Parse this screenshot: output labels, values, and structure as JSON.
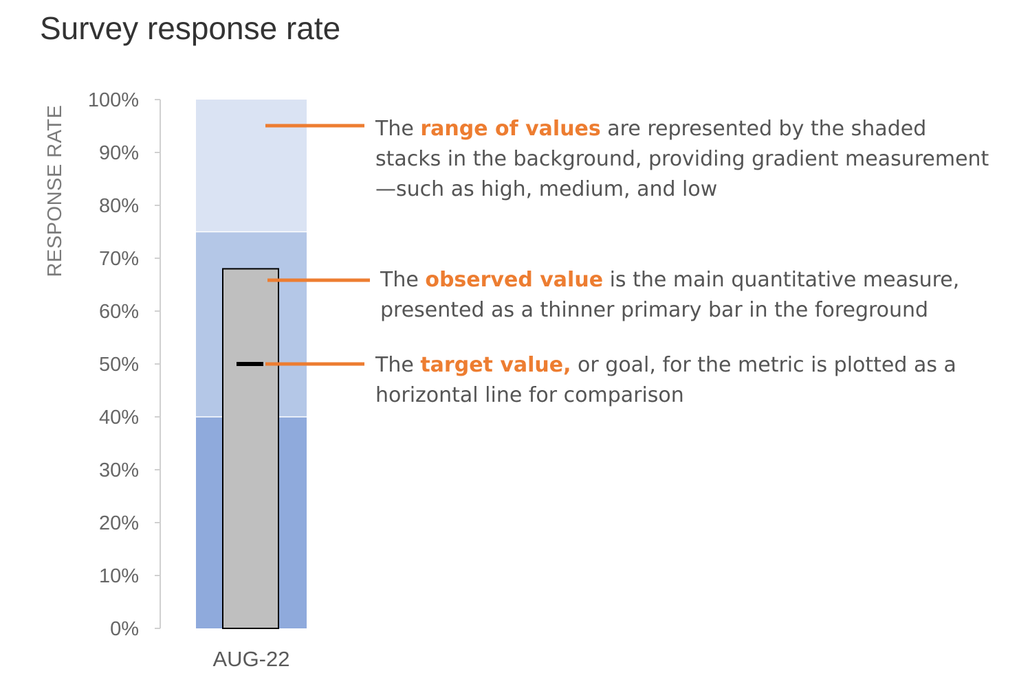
{
  "chart_data": {
    "type": "bullet",
    "title": "Survey response rate",
    "ylabel": "RESPONSE RATE",
    "categories": [
      "AUG-22"
    ],
    "ylim": [
      0,
      100
    ],
    "y_ticks": [
      "0%",
      "10%",
      "20%",
      "30%",
      "40%",
      "50%",
      "60%",
      "70%",
      "80%",
      "90%",
      "100%"
    ],
    "ranges": [
      {
        "from": 0,
        "to": 40,
        "color": "#8FAADC"
      },
      {
        "from": 40,
        "to": 75,
        "color": "#B4C7E7"
      },
      {
        "from": 75,
        "to": 100,
        "color": "#DAE3F3"
      }
    ],
    "observed_value": 68,
    "observed_color": "#BFBFBF",
    "target_value": 50,
    "target_color": "#000000",
    "annotation_line_color": "#ED7D31",
    "grid": false
  },
  "annotations": [
    {
      "pre": "The ",
      "highlight": "range of values",
      "post": " are represented by the shaded stacks in the background, providing gradient measurement—such as high, medium, and low"
    },
    {
      "pre": "The ",
      "highlight": "observed value",
      "post": " is the main quantitative measure, presented as a thinner primary bar in the foreground"
    },
    {
      "pre": "The ",
      "highlight": "target value,",
      "post": " or goal, for the metric is plotted as a horizontal line for comparison"
    }
  ]
}
